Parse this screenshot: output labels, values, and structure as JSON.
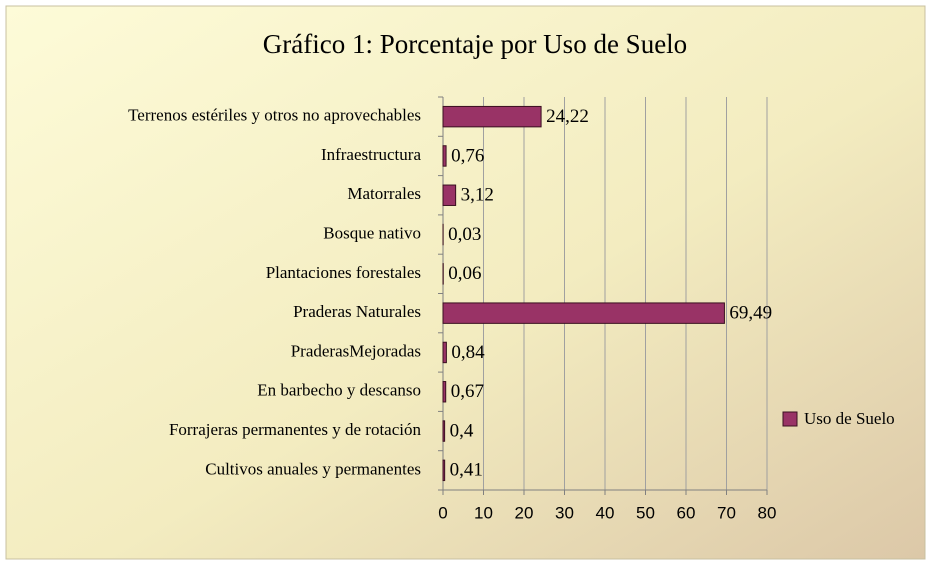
{
  "chart_data": {
    "type": "bar",
    "orientation": "horizontal",
    "title": "Gráfico 1: Porcentaje por Uso de Suelo",
    "categories": [
      "Terrenos estériles y otros no aprovechables",
      "Infraestructura",
      "Matorrales",
      "Bosque nativo",
      "Plantaciones forestales",
      "Praderas Naturales",
      "PraderasMejoradas",
      "En barbecho y descanso",
      "Forrajeras permanentes y de rotación",
      "Cultivos anuales y permanentes"
    ],
    "series": [
      {
        "name": "Uso de Suelo",
        "color": "#993366",
        "values": [
          24.22,
          0.76,
          3.12,
          0.03,
          0.06,
          69.49,
          0.84,
          0.67,
          0.4,
          0.41
        ],
        "value_labels": [
          "24,22",
          "0,76",
          "3,12",
          "0,03",
          "0,06",
          "69,49",
          "0,84",
          "0,67",
          "0,4",
          "0,41"
        ]
      }
    ],
    "xlim": [
      0,
      80
    ],
    "xticks": [
      0,
      10,
      20,
      30,
      40,
      50,
      60,
      70,
      80
    ],
    "grid": true,
    "legend": "right"
  }
}
